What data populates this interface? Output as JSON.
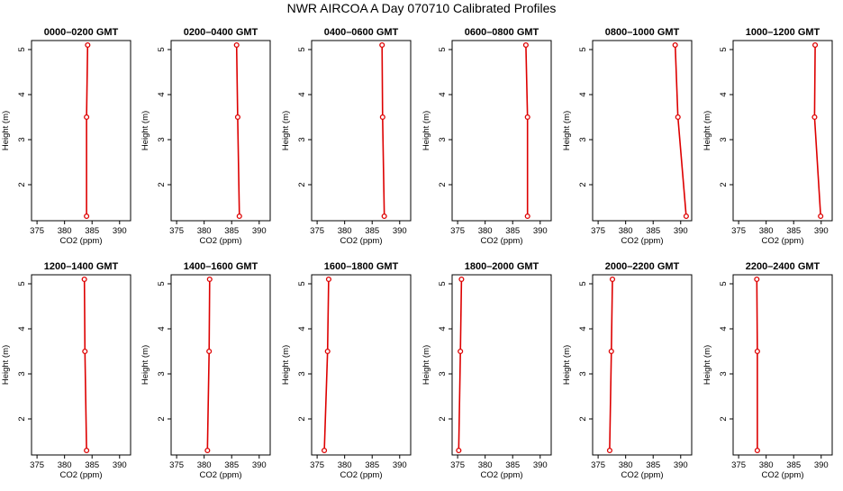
{
  "figure": {
    "title": "NWR AIRCOA A  Day 070710  Calibrated Profiles",
    "line_color": "#dd0000"
  },
  "chart_data": [
    {
      "type": "line",
      "title": "0000–0200 GMT",
      "xlabel": "CO2 (ppm)",
      "ylabel": "Height (m)",
      "xlim": [
        374,
        392
      ],
      "ylim": [
        1.2,
        5.2
      ],
      "xticks": [
        375,
        380,
        385,
        390
      ],
      "yticks": [
        2,
        3,
        4,
        5
      ],
      "x": [
        384.0,
        384.0,
        384.2
      ],
      "y": [
        1.3,
        3.5,
        5.1
      ]
    },
    {
      "type": "line",
      "title": "0200–0400 GMT",
      "xlabel": "CO2 (ppm)",
      "ylabel": "Height (m)",
      "xlim": [
        374,
        392
      ],
      "ylim": [
        1.2,
        5.2
      ],
      "xticks": [
        375,
        380,
        385,
        390
      ],
      "yticks": [
        2,
        3,
        4,
        5
      ],
      "x": [
        386.4,
        386.1,
        385.9
      ],
      "y": [
        1.3,
        3.5,
        5.1
      ]
    },
    {
      "type": "line",
      "title": "0400–0600 GMT",
      "xlabel": "CO2 (ppm)",
      "ylabel": "Height (m)",
      "xlim": [
        374,
        392
      ],
      "ylim": [
        1.2,
        5.2
      ],
      "xticks": [
        375,
        380,
        385,
        390
      ],
      "yticks": [
        2,
        3,
        4,
        5
      ],
      "x": [
        387.2,
        386.9,
        386.8
      ],
      "y": [
        1.3,
        3.5,
        5.1
      ]
    },
    {
      "type": "line",
      "title": "0600–0800 GMT",
      "xlabel": "CO2 (ppm)",
      "ylabel": "Height (m)",
      "xlim": [
        374,
        392
      ],
      "ylim": [
        1.2,
        5.2
      ],
      "xticks": [
        375,
        380,
        385,
        390
      ],
      "yticks": [
        2,
        3,
        4,
        5
      ],
      "x": [
        387.7,
        387.7,
        387.4
      ],
      "y": [
        1.3,
        3.5,
        5.1
      ]
    },
    {
      "type": "line",
      "title": "0800–1000 GMT",
      "xlabel": "CO2 (ppm)",
      "ylabel": "Height (m)",
      "xlim": [
        374,
        392
      ],
      "ylim": [
        1.2,
        5.2
      ],
      "xticks": [
        375,
        380,
        385,
        390
      ],
      "yticks": [
        2,
        3,
        4,
        5
      ],
      "x": [
        391.0,
        389.5,
        389.0
      ],
      "y": [
        1.3,
        3.5,
        5.1
      ]
    },
    {
      "type": "line",
      "title": "1000–1200 GMT",
      "xlabel": "CO2 (ppm)",
      "ylabel": "Height (m)",
      "xlim": [
        374,
        392
      ],
      "ylim": [
        1.2,
        5.2
      ],
      "xticks": [
        375,
        380,
        385,
        390
      ],
      "yticks": [
        2,
        3,
        4,
        5
      ],
      "x": [
        389.9,
        388.8,
        388.9
      ],
      "y": [
        1.3,
        3.5,
        5.1
      ]
    },
    {
      "type": "line",
      "title": "1200–1400 GMT",
      "xlabel": "CO2 (ppm)",
      "ylabel": "Height (m)",
      "xlim": [
        374,
        392
      ],
      "ylim": [
        1.2,
        5.2
      ],
      "xticks": [
        375,
        380,
        385,
        390
      ],
      "yticks": [
        2,
        3,
        4,
        5
      ],
      "x": [
        384.0,
        383.7,
        383.6
      ],
      "y": [
        1.3,
        3.5,
        5.1
      ]
    },
    {
      "type": "line",
      "title": "1400–1600 GMT",
      "xlabel": "CO2 (ppm)",
      "ylabel": "Height (m)",
      "xlim": [
        374,
        392
      ],
      "ylim": [
        1.2,
        5.2
      ],
      "xticks": [
        375,
        380,
        385,
        390
      ],
      "yticks": [
        2,
        3,
        4,
        5
      ],
      "x": [
        380.6,
        380.9,
        381.0
      ],
      "y": [
        1.3,
        3.5,
        5.1
      ]
    },
    {
      "type": "line",
      "title": "1600–1800 GMT",
      "xlabel": "CO2 (ppm)",
      "ylabel": "Height (m)",
      "xlim": [
        374,
        392
      ],
      "ylim": [
        1.2,
        5.2
      ],
      "xticks": [
        375,
        380,
        385,
        390
      ],
      "yticks": [
        2,
        3,
        4,
        5
      ],
      "x": [
        376.3,
        376.9,
        377.1
      ],
      "y": [
        1.3,
        3.5,
        5.1
      ]
    },
    {
      "type": "line",
      "title": "1800–2000 GMT",
      "xlabel": "CO2 (ppm)",
      "ylabel": "Height (m)",
      "xlim": [
        374,
        392
      ],
      "ylim": [
        1.2,
        5.2
      ],
      "xticks": [
        375,
        380,
        385,
        390
      ],
      "yticks": [
        2,
        3,
        4,
        5
      ],
      "x": [
        375.2,
        375.5,
        375.7
      ],
      "y": [
        1.3,
        3.5,
        5.1
      ]
    },
    {
      "type": "line",
      "title": "2000–2200 GMT",
      "xlabel": "CO2 (ppm)",
      "ylabel": "Height (m)",
      "xlim": [
        374,
        392
      ],
      "ylim": [
        1.2,
        5.2
      ],
      "xticks": [
        375,
        380,
        385,
        390
      ],
      "yticks": [
        2,
        3,
        4,
        5
      ],
      "x": [
        377.1,
        377.4,
        377.6
      ],
      "y": [
        1.3,
        3.5,
        5.1
      ]
    },
    {
      "type": "line",
      "title": "2200–2400 GMT",
      "xlabel": "CO2 (ppm)",
      "ylabel": "Height (m)",
      "xlim": [
        374,
        392
      ],
      "ylim": [
        1.2,
        5.2
      ],
      "xticks": [
        375,
        380,
        385,
        390
      ],
      "yticks": [
        2,
        3,
        4,
        5
      ],
      "x": [
        378.4,
        378.4,
        378.3
      ],
      "y": [
        1.3,
        3.5,
        5.1
      ]
    }
  ]
}
